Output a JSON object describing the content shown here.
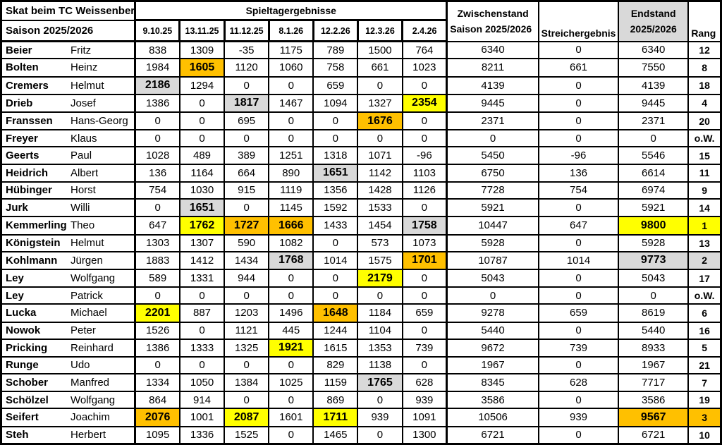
{
  "title": {
    "line1": "Skat beim TC Weissenberg",
    "line2": "Saison 2025/2026"
  },
  "headers": {
    "spieltagergebnisse": "Spieltagergebnisse",
    "zwischenstand_line1": "Zwischenstand",
    "zwischenstand_line2": "Saison 2025/2026",
    "streichergebnis": "Streichergebnis",
    "endstand_line1": "Endstand",
    "endstand_line2": "2025/2026",
    "rang": "Rang"
  },
  "dates": [
    "9.10.25",
    "13.11.25",
    "11.12.25",
    "8.1.26",
    "12.2.26",
    "12.3.26",
    "2.4.26"
  ],
  "colors": {
    "yellow": "#FFFF00",
    "orange": "#FFC000",
    "gray": "#D9D9D9",
    "header_gray": "#D9D9D9"
  },
  "players": [
    {
      "last": "Beier",
      "first": "Fritz",
      "scores": [
        838,
        1309,
        -35,
        1175,
        789,
        1500,
        764
      ],
      "score_hl": [
        "",
        "",
        "",
        "",
        "",
        "",
        ""
      ],
      "zwischenstand": 6340,
      "streichergebnis": 0,
      "endstand": 6340,
      "endstand_hl": "",
      "rang": "12",
      "rang_hl": ""
    },
    {
      "last": "Bolten",
      "first": "Heinz",
      "scores": [
        1984,
        1605,
        1120,
        1060,
        758,
        661,
        1023
      ],
      "score_hl": [
        "",
        "orange",
        "",
        "",
        "",
        "",
        ""
      ],
      "zwischenstand": 8211,
      "streichergebnis": 661,
      "endstand": 7550,
      "endstand_hl": "",
      "rang": "8",
      "rang_hl": ""
    },
    {
      "last": "Cremers",
      "first": "Helmut",
      "scores": [
        2186,
        1294,
        0,
        0,
        659,
        0,
        0
      ],
      "score_hl": [
        "gray",
        "",
        "",
        "",
        "",
        "",
        ""
      ],
      "zwischenstand": 4139,
      "streichergebnis": 0,
      "endstand": 4139,
      "endstand_hl": "",
      "rang": "18",
      "rang_hl": ""
    },
    {
      "last": "Drieb",
      "first": "Josef",
      "scores": [
        1386,
        0,
        1817,
        1467,
        1094,
        1327,
        2354
      ],
      "score_hl": [
        "",
        "",
        "gray",
        "",
        "",
        "",
        "yellow"
      ],
      "zwischenstand": 9445,
      "streichergebnis": 0,
      "endstand": 9445,
      "endstand_hl": "",
      "rang": "4",
      "rang_hl": ""
    },
    {
      "last": "Franssen",
      "first": "Hans-Georg",
      "scores": [
        0,
        0,
        695,
        0,
        0,
        1676,
        0
      ],
      "score_hl": [
        "",
        "",
        "",
        "",
        "",
        "orange",
        ""
      ],
      "zwischenstand": 2371,
      "streichergebnis": 0,
      "endstand": 2371,
      "endstand_hl": "",
      "rang": "20",
      "rang_hl": ""
    },
    {
      "last": "Freyer",
      "first": "Klaus",
      "scores": [
        0,
        0,
        0,
        0,
        0,
        0,
        0
      ],
      "score_hl": [
        "",
        "",
        "",
        "",
        "",
        "",
        ""
      ],
      "zwischenstand": 0,
      "streichergebnis": 0,
      "endstand": 0,
      "endstand_hl": "",
      "rang": "o.W.",
      "rang_hl": ""
    },
    {
      "last": "Geerts",
      "first": "Paul",
      "scores": [
        1028,
        489,
        389,
        1251,
        1318,
        1071,
        -96
      ],
      "score_hl": [
        "",
        "",
        "",
        "",
        "",
        "",
        ""
      ],
      "zwischenstand": 5450,
      "streichergebnis": -96,
      "endstand": 5546,
      "endstand_hl": "",
      "rang": "15",
      "rang_hl": ""
    },
    {
      "last": "Heidrich",
      "first": "Albert",
      "scores": [
        136,
        1164,
        664,
        890,
        1651,
        1142,
        1103
      ],
      "score_hl": [
        "",
        "",
        "",
        "",
        "gray",
        "",
        ""
      ],
      "zwischenstand": 6750,
      "streichergebnis": 136,
      "endstand": 6614,
      "endstand_hl": "",
      "rang": "11",
      "rang_hl": ""
    },
    {
      "last": "Hübinger",
      "first": "Horst",
      "scores": [
        754,
        1030,
        915,
        1119,
        1356,
        1428,
        1126
      ],
      "score_hl": [
        "",
        "",
        "",
        "",
        "",
        "",
        ""
      ],
      "zwischenstand": 7728,
      "streichergebnis": 754,
      "endstand": 6974,
      "endstand_hl": "",
      "rang": "9",
      "rang_hl": ""
    },
    {
      "last": "Jurk",
      "first": "Willi",
      "scores": [
        0,
        1651,
        0,
        1145,
        1592,
        1533,
        0
      ],
      "score_hl": [
        "",
        "gray",
        "",
        "",
        "",
        "",
        ""
      ],
      "zwischenstand": 5921,
      "streichergebnis": 0,
      "endstand": 5921,
      "endstand_hl": "",
      "rang": "14",
      "rang_hl": ""
    },
    {
      "last": "Kemmerling",
      "first": "Theo",
      "scores": [
        647,
        1762,
        1727,
        1666,
        1433,
        1454,
        1758
      ],
      "score_hl": [
        "",
        "yellow",
        "orange",
        "orange",
        "",
        "",
        "gray"
      ],
      "zwischenstand": 10447,
      "streichergebnis": 647,
      "endstand": 9800,
      "endstand_hl": "yellow",
      "rang": "1",
      "rang_hl": "yellow"
    },
    {
      "last": "Königstein",
      "first": "Helmut",
      "scores": [
        1303,
        1307,
        590,
        1082,
        0,
        573,
        1073
      ],
      "score_hl": [
        "",
        "",
        "",
        "",
        "",
        "",
        ""
      ],
      "zwischenstand": 5928,
      "streichergebnis": 0,
      "endstand": 5928,
      "endstand_hl": "",
      "rang": "13",
      "rang_hl": ""
    },
    {
      "last": "Kohlmann",
      "first": "Jürgen",
      "scores": [
        1883,
        1412,
        1434,
        1768,
        1014,
        1575,
        1701
      ],
      "score_hl": [
        "",
        "",
        "",
        "gray",
        "",
        "",
        "orange"
      ],
      "zwischenstand": 10787,
      "streichergebnis": 1014,
      "endstand": 9773,
      "endstand_hl": "gray",
      "rang": "2",
      "rang_hl": "gray"
    },
    {
      "last": "Ley",
      "first": "Wolfgang",
      "scores": [
        589,
        1331,
        944,
        0,
        0,
        2179,
        0
      ],
      "score_hl": [
        "",
        "",
        "",
        "",
        "",
        "yellow",
        ""
      ],
      "zwischenstand": 5043,
      "streichergebnis": 0,
      "endstand": 5043,
      "endstand_hl": "",
      "rang": "17",
      "rang_hl": ""
    },
    {
      "last": "Ley",
      "first": "Patrick",
      "scores": [
        0,
        0,
        0,
        0,
        0,
        0,
        0
      ],
      "score_hl": [
        "",
        "",
        "",
        "",
        "",
        "",
        ""
      ],
      "zwischenstand": 0,
      "streichergebnis": 0,
      "endstand": 0,
      "endstand_hl": "",
      "rang": "o.W.",
      "rang_hl": ""
    },
    {
      "last": "Lucka",
      "first": "Michael",
      "scores": [
        2201,
        887,
        1203,
        1496,
        1648,
        1184,
        659
      ],
      "score_hl": [
        "yellow",
        "",
        "",
        "",
        "orange",
        "",
        ""
      ],
      "zwischenstand": 9278,
      "streichergebnis": 659,
      "endstand": 8619,
      "endstand_hl": "",
      "rang": "6",
      "rang_hl": ""
    },
    {
      "last": "Nowok",
      "first": "Peter",
      "scores": [
        1526,
        0,
        1121,
        445,
        1244,
        1104,
        0
      ],
      "score_hl": [
        "",
        "",
        "",
        "",
        "",
        "",
        ""
      ],
      "zwischenstand": 5440,
      "streichergebnis": 0,
      "endstand": 5440,
      "endstand_hl": "",
      "rang": "16",
      "rang_hl": ""
    },
    {
      "last": "Pricking",
      "first": "Reinhard",
      "scores": [
        1386,
        1333,
        1325,
        1921,
        1615,
        1353,
        739
      ],
      "score_hl": [
        "",
        "",
        "",
        "yellow",
        "",
        "",
        ""
      ],
      "zwischenstand": 9672,
      "streichergebnis": 739,
      "endstand": 8933,
      "endstand_hl": "",
      "rang": "5",
      "rang_hl": ""
    },
    {
      "last": "Runge",
      "first": "Udo",
      "scores": [
        0,
        0,
        0,
        0,
        829,
        1138,
        0
      ],
      "score_hl": [
        "",
        "",
        "",
        "",
        "",
        "",
        ""
      ],
      "zwischenstand": 1967,
      "streichergebnis": 0,
      "endstand": 1967,
      "endstand_hl": "",
      "rang": "21",
      "rang_hl": ""
    },
    {
      "last": "Schober",
      "first": "Manfred",
      "scores": [
        1334,
        1050,
        1384,
        1025,
        1159,
        1765,
        628
      ],
      "score_hl": [
        "",
        "",
        "",
        "",
        "",
        "gray",
        ""
      ],
      "zwischenstand": 8345,
      "streichergebnis": 628,
      "endstand": 7717,
      "endstand_hl": "",
      "rang": "7",
      "rang_hl": ""
    },
    {
      "last": "Schölzel",
      "first": "Wolfgang",
      "scores": [
        864,
        914,
        0,
        0,
        869,
        0,
        939
      ],
      "score_hl": [
        "",
        "",
        "",
        "",
        "",
        "",
        ""
      ],
      "zwischenstand": 3586,
      "streichergebnis": 0,
      "endstand": 3586,
      "endstand_hl": "",
      "rang": "19",
      "rang_hl": ""
    },
    {
      "last": "Seifert",
      "first": "Joachim",
      "scores": [
        2076,
        1001,
        2087,
        1601,
        1711,
        939,
        1091
      ],
      "score_hl": [
        "orange",
        "",
        "yellow",
        "",
        "yellow",
        "",
        ""
      ],
      "zwischenstand": 10506,
      "streichergebnis": 939,
      "endstand": 9567,
      "endstand_hl": "orange",
      "rang": "3",
      "rang_hl": "orange"
    },
    {
      "last": "Steh",
      "first": "Herbert",
      "scores": [
        1095,
        1336,
        1525,
        0,
        1465,
        0,
        1300
      ],
      "score_hl": [
        "",
        "",
        "",
        "",
        "",
        "",
        ""
      ],
      "zwischenstand": 6721,
      "streichergebnis": 0,
      "endstand": 6721,
      "endstand_hl": "",
      "rang": "10",
      "rang_hl": ""
    }
  ]
}
